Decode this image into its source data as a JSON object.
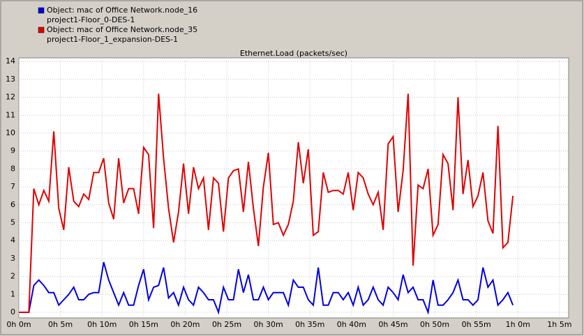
{
  "chart_data": {
    "type": "line",
    "title": "Ethernet.Load (packets/sec)",
    "x": [
      0,
      0.6,
      1.2,
      1.8,
      2.4,
      3,
      3.6,
      4.2,
      4.8,
      5.4,
      6,
      6.6,
      7.2,
      7.8,
      8.4,
      9,
      9.6,
      10.2,
      10.8,
      11.4,
      12,
      12.6,
      13.2,
      13.8,
      14.4,
      15,
      15.6,
      16.2,
      16.8,
      17.4,
      18,
      18.6,
      19.2,
      19.8,
      20.4,
      21,
      21.6,
      22.2,
      22.8,
      23.4,
      24,
      24.6,
      25.2,
      25.8,
      26.4,
      27,
      27.6,
      28.2,
      28.8,
      29.4,
      30,
      30.6,
      31.2,
      31.8,
      32.4,
      33,
      33.6,
      34.2,
      34.8,
      35.4,
      36,
      36.6,
      37.2,
      37.8,
      38.4,
      39,
      39.6,
      40.2,
      40.8,
      41.4,
      42,
      42.6,
      43.2,
      43.8,
      44.4,
      45,
      45.6,
      46.2,
      46.8,
      47.4,
      48,
      48.6,
      49.2,
      49.8,
      50.4,
      51,
      51.6,
      52.2,
      52.8,
      53.4,
      54,
      54.6,
      55.2,
      55.8,
      56.4,
      57,
      57.6,
      58.2,
      58.8,
      59.4
    ],
    "series": [
      {
        "name": "Object: mac of Office Network.node_16",
        "scenario": "project1-Floor_0-DES-1",
        "color": "#0000e0",
        "values": [
          0,
          0,
          0,
          1.5,
          1.8,
          1.5,
          1.1,
          1.1,
          0.4,
          0.7,
          1.0,
          1.4,
          0.7,
          0.7,
          1.0,
          1.1,
          1.1,
          2.8,
          1.8,
          1.1,
          0.4,
          1.1,
          0.4,
          0.4,
          1.5,
          2.4,
          0.7,
          1.4,
          1.5,
          2.5,
          0.8,
          1.1,
          0.4,
          1.4,
          0.7,
          0.4,
          1.4,
          1.1,
          0.7,
          0.7,
          0.0,
          1.4,
          0.7,
          0.7,
          2.4,
          1.1,
          2.1,
          0.7,
          0.7,
          1.4,
          0.7,
          1.1,
          1.1,
          1.1,
          0.4,
          1.8,
          1.4,
          1.4,
          0.7,
          0.4,
          2.5,
          0.4,
          0.4,
          1.1,
          1.1,
          0.7,
          1.1,
          0.4,
          1.4,
          0.4,
          0.7,
          1.4,
          0.7,
          0.4,
          1.4,
          1.1,
          0.7,
          2.1,
          1.1,
          1.4,
          0.7,
          0.7,
          0.0,
          1.8,
          0.4,
          0.4,
          0.7,
          1.1,
          1.8,
          0.7,
          0.7,
          0.4,
          0.7,
          2.5,
          1.4,
          1.8,
          0.4,
          0.7,
          1.1,
          0.4
        ]
      },
      {
        "name": "Object: mac of Office Network.node_35",
        "scenario": "project1-Floor_1_expansion-DES-1",
        "color": "#e00000",
        "values": [
          0,
          0,
          0,
          6.9,
          6.0,
          6.8,
          6.2,
          10.1,
          5.8,
          4.6,
          8.1,
          6.2,
          5.9,
          6.6,
          6.3,
          7.8,
          7.8,
          8.6,
          6.1,
          5.2,
          8.6,
          6.1,
          6.9,
          6.9,
          5.5,
          9.2,
          8.8,
          4.7,
          12.2,
          8.6,
          5.8,
          3.9,
          5.6,
          8.3,
          5.5,
          8.1,
          6.9,
          7.5,
          4.6,
          7.5,
          7.2,
          4.5,
          7.5,
          7.9,
          8.0,
          5.6,
          8.4,
          5.8,
          3.7,
          7.0,
          8.9,
          4.9,
          5.0,
          4.3,
          4.9,
          6.2,
          9.5,
          7.2,
          9.1,
          4.3,
          4.5,
          7.8,
          6.7,
          6.8,
          6.8,
          6.6,
          7.8,
          5.7,
          7.8,
          7.5,
          6.6,
          6.0,
          6.7,
          4.6,
          9.4,
          9.8,
          5.6,
          7.9,
          12.2,
          2.6,
          7.1,
          6.9,
          8.0,
          4.3,
          4.9,
          8.8,
          8.3,
          5.7,
          12.0,
          6.6,
          8.5,
          5.9,
          6.5,
          7.8,
          5.1,
          4.4,
          10.4,
          3.6,
          3.9,
          6.5
        ]
      }
    ],
    "xlim": [
      0,
      66.1
    ],
    "ylim": [
      0,
      14.2
    ],
    "xticks": [
      {
        "value": 0,
        "label": "0h 0m"
      },
      {
        "value": 5,
        "label": "0h 5m"
      },
      {
        "value": 10,
        "label": "0h 10m"
      },
      {
        "value": 15,
        "label": "0h 15m"
      },
      {
        "value": 20,
        "label": "0h 20m"
      },
      {
        "value": 25,
        "label": "0h 25m"
      },
      {
        "value": 30,
        "label": "0h 30m"
      },
      {
        "value": 35,
        "label": "0h 35m"
      },
      {
        "value": 40,
        "label": "0h 40m"
      },
      {
        "value": 45,
        "label": "0h 45m"
      },
      {
        "value": 50,
        "label": "0h 50m"
      },
      {
        "value": 55,
        "label": "0h 55m"
      },
      {
        "value": 60,
        "label": "1h 0m"
      },
      {
        "value": 65,
        "label": "1h 5m"
      }
    ],
    "yticks": [
      0,
      1,
      2,
      3,
      4,
      5,
      6,
      7,
      8,
      9,
      10,
      11,
      12,
      13,
      14
    ],
    "grid": true
  }
}
